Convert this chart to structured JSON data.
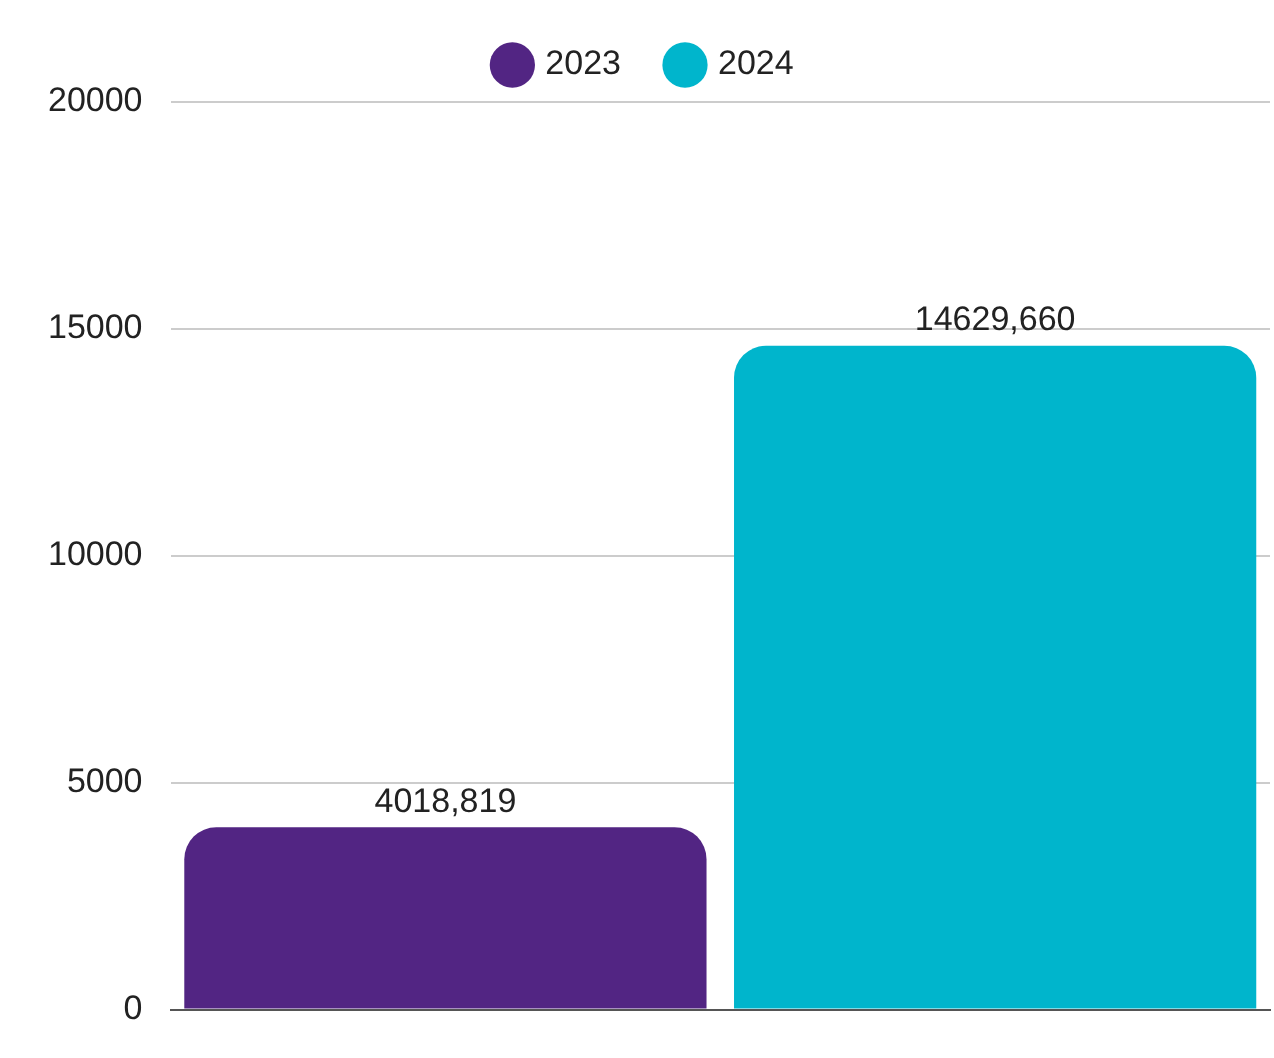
{
  "chart_data": {
    "type": "bar",
    "categories": [
      null
    ],
    "series": [
      {
        "name": "2023",
        "color": "#522583",
        "values": [
          4018.819
        ],
        "value_labels": [
          "4018,819"
        ]
      },
      {
        "name": "2024",
        "color": "#00b5cc",
        "values": [
          14629.66
        ],
        "value_labels": [
          "14629,660"
        ]
      }
    ],
    "ylim": [
      0,
      20000
    ],
    "yticks": [
      0,
      5000,
      10000,
      15000,
      20000
    ],
    "grid": "y",
    "legend": "top",
    "tick_labels": "y"
  }
}
